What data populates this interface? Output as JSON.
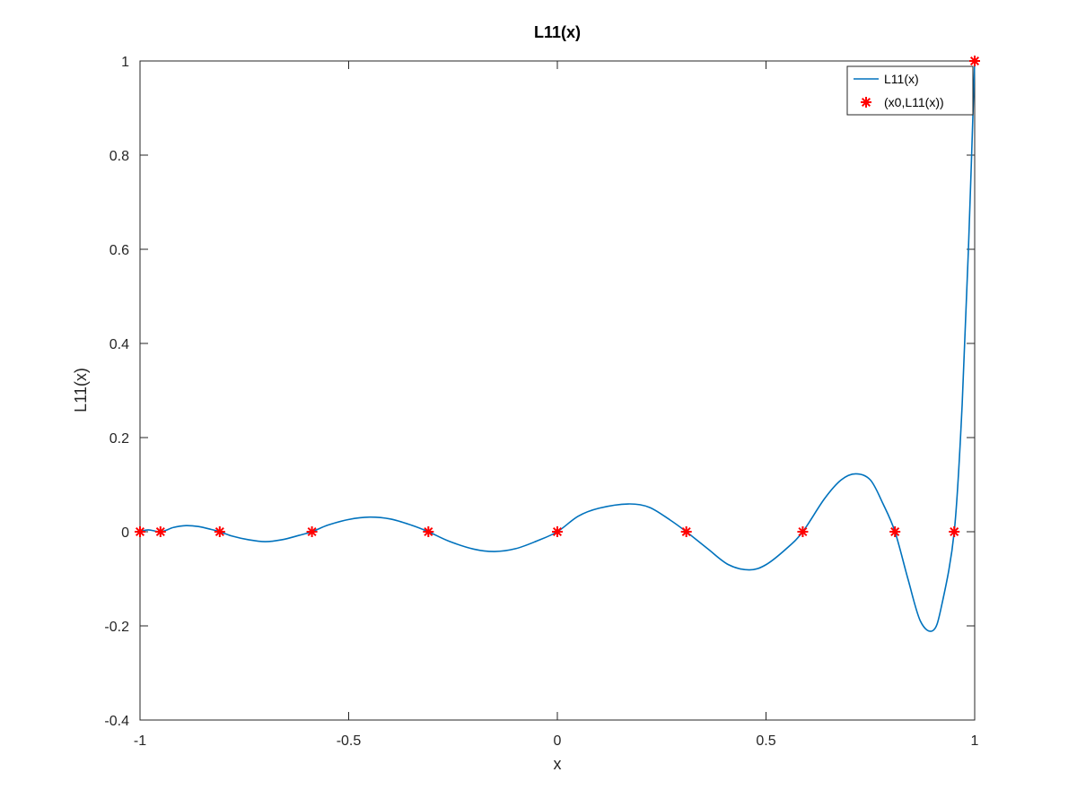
{
  "chart_data": {
    "type": "line",
    "title": "L11(x)",
    "xlabel": "x",
    "ylabel": "L11(x)",
    "xlim": [
      -1,
      1
    ],
    "ylim": [
      -0.4,
      1
    ],
    "xticks": [
      -1,
      -0.5,
      0,
      0.5,
      1
    ],
    "xtick_labels": [
      "-1",
      "-0.5",
      "0",
      "0.5",
      "1"
    ],
    "yticks": [
      -0.4,
      -0.2,
      0,
      0.2,
      0.4,
      0.6,
      0.8,
      1
    ],
    "ytick_labels": [
      "-0.4",
      "-0.2",
      "0",
      "0.2",
      "0.4",
      "0.6",
      "0.8",
      "1"
    ],
    "grid": false,
    "legend_position": "top-right",
    "series": [
      {
        "name": "L11(x)",
        "kind": "line",
        "color": "#0072bd",
        "x": [
          -1,
          -0.98,
          -0.95,
          -0.92,
          -0.89,
          -0.86,
          -0.83,
          -0.809,
          -0.78,
          -0.74,
          -0.7,
          -0.66,
          -0.62,
          -0.588,
          -0.55,
          -0.5,
          -0.45,
          -0.4,
          -0.35,
          -0.309,
          -0.26,
          -0.2,
          -0.15,
          -0.1,
          -0.05,
          0,
          0.05,
          0.1,
          0.17,
          0.22,
          0.27,
          0.309,
          0.36,
          0.41,
          0.46,
          0.5,
          0.55,
          0.588,
          0.64,
          0.68,
          0.715,
          0.75,
          0.78,
          0.809,
          0.84,
          0.87,
          0.9,
          0.92,
          0.951,
          0.97,
          0.985,
          1
        ],
        "y": [
          0,
          0.004,
          0,
          0.009,
          0.013,
          0.011,
          0.005,
          0,
          -0.009,
          -0.017,
          -0.021,
          -0.017,
          -0.008,
          0,
          0.014,
          0.026,
          0.031,
          0.027,
          0.014,
          0,
          -0.02,
          -0.037,
          -0.042,
          -0.036,
          -0.02,
          0,
          0.033,
          0.05,
          0.059,
          0.052,
          0.025,
          0,
          -0.036,
          -0.07,
          -0.081,
          -0.07,
          -0.035,
          0,
          0.07,
          0.11,
          0.123,
          0.11,
          0.06,
          0,
          -0.1,
          -0.19,
          -0.21,
          -0.16,
          0,
          0.27,
          0.6,
          1
        ]
      },
      {
        "name": "(x0,L11(x))",
        "kind": "markers",
        "marker": "asterisk",
        "color": "#ff0000",
        "x": [
          -1,
          -0.951,
          -0.809,
          -0.588,
          -0.309,
          0,
          0.309,
          0.588,
          0.809,
          0.951,
          1
        ],
        "y": [
          0,
          0,
          0,
          0,
          0,
          0,
          0,
          0,
          0,
          0,
          1
        ]
      }
    ]
  }
}
